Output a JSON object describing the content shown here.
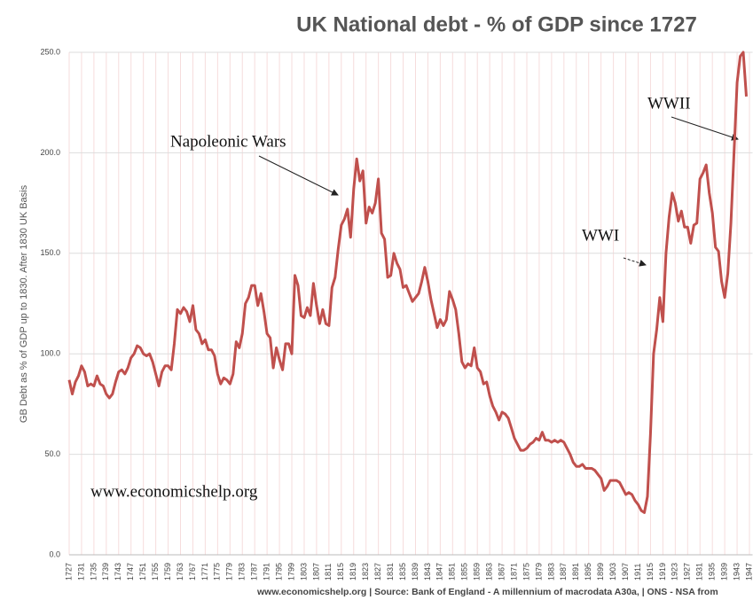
{
  "chart_data": {
    "type": "line",
    "title": "UK National debt - % of GDP since 1727",
    "y_label": "GB Debt as % of GDP up to 1830. After 1830 UK Basis",
    "source": "www.economicshelp.org | Source: Bank of England - A millennium of macrodata A30a, | ONS - NSA from",
    "annotations": [
      "Napoleonic Wars",
      "WWI",
      "WWII",
      "www.economicshelp.org"
    ],
    "color": "#c0504d",
    "grid": true,
    "xlim": [
      1727,
      1948
    ],
    "xticks": [
      1727,
      1731,
      1735,
      1739,
      1743,
      1747,
      1751,
      1755,
      1759,
      1763,
      1767,
      1771,
      1775,
      1779,
      1783,
      1787,
      1791,
      1795,
      1799,
      1803,
      1807,
      1811,
      1815,
      1819,
      1823,
      1827,
      1831,
      1835,
      1839,
      1843,
      1847,
      1851,
      1855,
      1859,
      1863,
      1867,
      1871,
      1875,
      1879,
      1883,
      1887,
      1891,
      1895,
      1899,
      1903,
      1907,
      1911,
      1915,
      1919,
      1923,
      1927,
      1931,
      1935,
      1939,
      1943,
      1947
    ],
    "ylim": [
      0,
      250
    ],
    "yticks": [
      {
        "value": 0,
        "label": "0.0"
      },
      {
        "value": 50,
        "label": "50.0"
      },
      {
        "value": 100,
        "label": "100.0"
      },
      {
        "value": 150,
        "label": "150.0"
      },
      {
        "value": 200,
        "label": "200.0"
      },
      {
        "value": 250,
        "label": "250.0"
      }
    ],
    "x": [
      1727,
      1728,
      1729,
      1730,
      1731,
      1732,
      1733,
      1734,
      1735,
      1736,
      1737,
      1738,
      1739,
      1740,
      1741,
      1742,
      1743,
      1744,
      1745,
      1746,
      1747,
      1748,
      1749,
      1750,
      1751,
      1752,
      1753,
      1754,
      1755,
      1756,
      1757,
      1758,
      1759,
      1760,
      1761,
      1762,
      1763,
      1764,
      1765,
      1766,
      1767,
      1768,
      1769,
      1770,
      1771,
      1772,
      1773,
      1774,
      1775,
      1776,
      1777,
      1778,
      1779,
      1780,
      1781,
      1782,
      1783,
      1784,
      1785,
      1786,
      1787,
      1788,
      1789,
      1790,
      1791,
      1792,
      1793,
      1794,
      1795,
      1796,
      1797,
      1798,
      1799,
      1800,
      1801,
      1802,
      1803,
      1804,
      1805,
      1806,
      1807,
      1808,
      1809,
      1810,
      1811,
      1812,
      1813,
      1814,
      1815,
      1816,
      1817,
      1818,
      1819,
      1820,
      1821,
      1822,
      1823,
      1824,
      1825,
      1826,
      1827,
      1828,
      1829,
      1830,
      1831,
      1832,
      1833,
      1834,
      1835,
      1836,
      1837,
      1838,
      1839,
      1840,
      1841,
      1842,
      1843,
      1844,
      1845,
      1846,
      1847,
      1848,
      1849,
      1850,
      1851,
      1852,
      1853,
      1854,
      1855,
      1856,
      1857,
      1858,
      1859,
      1860,
      1861,
      1862,
      1863,
      1864,
      1865,
      1866,
      1867,
      1868,
      1869,
      1870,
      1871,
      1872,
      1873,
      1874,
      1875,
      1876,
      1877,
      1878,
      1879,
      1880,
      1881,
      1882,
      1883,
      1884,
      1885,
      1886,
      1887,
      1888,
      1889,
      1890,
      1891,
      1892,
      1893,
      1894,
      1895,
      1896,
      1897,
      1898,
      1899,
      1900,
      1901,
      1902,
      1903,
      1904,
      1905,
      1906,
      1907,
      1908,
      1909,
      1910,
      1911,
      1912,
      1913,
      1914,
      1915,
      1916,
      1917,
      1918,
      1919,
      1920,
      1921,
      1922,
      1923,
      1924,
      1925,
      1926,
      1927,
      1928,
      1929,
      1930,
      1931,
      1932,
      1933,
      1934,
      1935,
      1936,
      1937,
      1938,
      1939,
      1940,
      1941,
      1942,
      1943,
      1944,
      1945,
      1946
    ],
    "values": [
      87,
      80,
      86,
      89,
      94,
      91,
      84,
      85,
      84,
      89,
      85,
      84,
      80,
      78,
      80,
      86,
      91,
      92,
      90,
      93,
      98,
      100,
      104,
      103,
      100,
      99,
      100,
      96,
      90,
      84,
      91,
      94,
      94,
      92,
      105,
      122,
      120,
      123,
      121,
      116,
      124,
      112,
      110,
      105,
      107,
      102,
      102,
      99,
      90,
      85,
      88,
      87,
      85,
      90,
      106,
      103,
      110,
      125,
      128,
      134,
      134,
      124,
      130,
      121,
      110,
      108,
      93,
      103,
      97,
      92,
      105,
      105,
      100,
      139,
      134,
      119,
      118,
      123,
      119,
      135,
      124,
      115,
      122,
      115,
      114,
      133,
      138,
      152,
      164,
      167,
      172,
      158,
      182,
      197,
      186,
      191,
      165,
      173,
      170,
      175,
      187,
      160,
      157,
      138,
      139,
      150,
      145,
      142,
      133,
      134,
      130,
      126,
      128,
      130,
      136,
      143,
      136,
      127,
      120,
      113,
      117,
      114,
      117,
      131,
      127,
      122,
      110,
      96,
      93,
      95,
      94,
      103,
      93,
      91,
      85,
      86,
      79,
      74,
      71,
      67,
      71,
      70,
      68,
      63,
      58,
      55,
      52,
      52,
      53,
      55,
      56,
      58,
      57,
      61,
      57,
      57,
      56,
      57,
      56,
      57,
      56,
      53,
      50,
      46,
      44,
      44,
      45,
      43,
      43,
      43,
      42,
      40,
      38,
      32,
      34,
      37,
      37,
      37,
      36,
      33,
      30,
      31,
      30,
      27,
      25,
      22,
      21,
      29,
      60,
      100,
      112,
      128,
      116,
      150,
      168,
      180,
      175,
      166,
      171,
      163,
      163,
      155,
      164,
      165,
      187,
      190,
      194,
      180,
      170,
      153,
      151,
      136,
      128,
      140,
      165,
      200,
      235,
      248,
      250,
      228
    ]
  }
}
